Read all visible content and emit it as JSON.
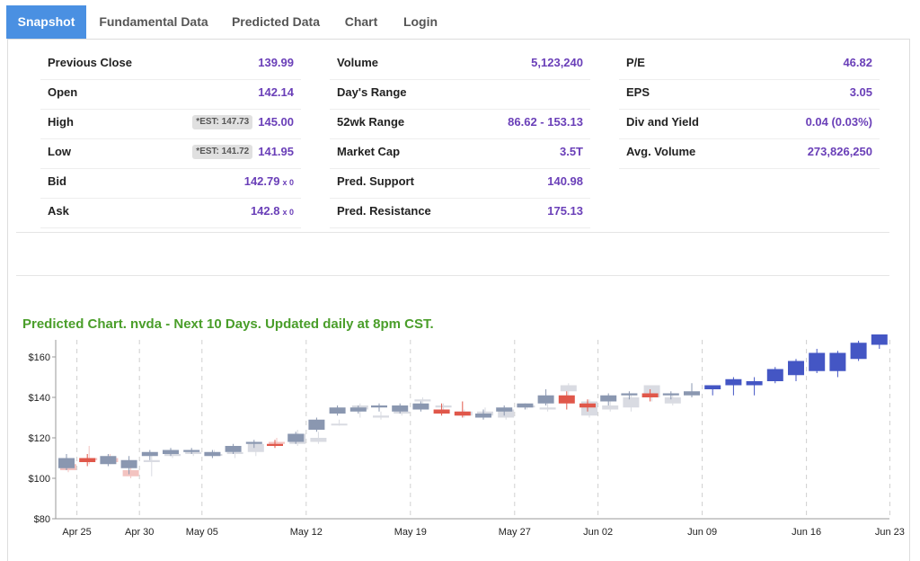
{
  "tabs": [
    {
      "label": "Snapshot",
      "active": true
    },
    {
      "label": "Fundamental Data",
      "active": false
    },
    {
      "label": "Predicted Data",
      "active": false
    },
    {
      "label": "Chart",
      "active": false
    },
    {
      "label": "Login",
      "active": false
    }
  ],
  "col1": [
    {
      "label": "Previous Close",
      "value": "139.99"
    },
    {
      "label": "Open",
      "value": "142.14"
    },
    {
      "label": "High",
      "est": "*EST: 147.73",
      "value": "145.00"
    },
    {
      "label": "Low",
      "est": "*EST: 141.72",
      "value": "141.95"
    },
    {
      "label": "Bid",
      "value": "142.79",
      "suffix": "x 0"
    },
    {
      "label": "Ask",
      "value": "142.8",
      "suffix": "x 0"
    }
  ],
  "col2": [
    {
      "label": "Volume",
      "value": "5,123,240"
    },
    {
      "label": "Day's Range",
      "value": ""
    },
    {
      "label": "52wk Range",
      "value": "86.62 - 153.13"
    },
    {
      "label": "Market Cap",
      "value": "3.5T"
    },
    {
      "label": "Pred. Support",
      "value": "140.98"
    },
    {
      "label": "Pred. Resistance",
      "value": "175.13"
    }
  ],
  "col3": [
    {
      "label": "P/E",
      "value": "46.82"
    },
    {
      "label": "EPS",
      "value": "3.05"
    },
    {
      "label": "Div and Yield",
      "value": "0.04 (0.03%)"
    },
    {
      "label": "Avg. Volume",
      "value": "273,826,250"
    }
  ],
  "chart_title": "Predicted Chart. nvda - Next 10 Days. Updated daily at 8pm CST.",
  "colors": {
    "accent_tab": "#4a90e2",
    "value_text": "#6a3fb8",
    "chart_title": "#4a9e2a",
    "hist_up_light": "#d9dbe2",
    "hist_up_dark": "#8a97b0",
    "hist_down_light": "#f3c3c0",
    "hist_down_dark": "#e0574a",
    "pred_up": "#4456c4"
  },
  "chart_data": {
    "type": "candlestick",
    "title": "Predicted Chart. nvda - Next 10 Days. Updated daily at 8pm CST.",
    "y_ticks": [
      "$80",
      "$100",
      "$120",
      "$140",
      "$160"
    ],
    "ylim": [
      80,
      180
    ],
    "x_tick_labels": [
      "Apr 25",
      "Apr 30",
      "May 05",
      "May 12",
      "May 19",
      "May 27",
      "Jun 02",
      "Jun 09",
      "Jun 16",
      "Jun 23"
    ],
    "x_tick_positions": [
      0.5,
      3.5,
      6.5,
      11.5,
      16.5,
      21.5,
      25.5,
      30.5,
      35.5,
      39.5
    ],
    "grid": "dashed vertical",
    "candles_actual": [
      {
        "o": 105,
        "c": 110,
        "h": 112,
        "l": 104
      },
      {
        "o": 110,
        "c": 108,
        "h": 112,
        "l": 106
      },
      {
        "o": 107,
        "c": 111,
        "h": 112,
        "l": 106
      },
      {
        "o": 105,
        "c": 109,
        "h": 111,
        "l": 102
      },
      {
        "o": 111,
        "c": 113,
        "h": 114,
        "l": 109
      },
      {
        "o": 112,
        "c": 114,
        "h": 115,
        "l": 111
      },
      {
        "o": 113,
        "c": 114,
        "h": 115,
        "l": 112
      },
      {
        "o": 111,
        "c": 113,
        "h": 114,
        "l": 110
      },
      {
        "o": 113,
        "c": 116,
        "h": 117,
        "l": 112
      },
      {
        "o": 117,
        "c": 118,
        "h": 119,
        "l": 115
      },
      {
        "o": 117,
        "c": 116,
        "h": 119,
        "l": 115
      },
      {
        "o": 118,
        "c": 122,
        "h": 123,
        "l": 117
      },
      {
        "o": 124,
        "c": 129,
        "h": 130,
        "l": 123
      },
      {
        "o": 132,
        "c": 135,
        "h": 136,
        "l": 131
      },
      {
        "o": 133,
        "c": 135,
        "h": 136,
        "l": 132
      },
      {
        "o": 135,
        "c": 136,
        "h": 137,
        "l": 133
      },
      {
        "o": 133,
        "c": 136,
        "h": 137,
        "l": 132
      },
      {
        "o": 134,
        "c": 137,
        "h": 138,
        "l": 133
      },
      {
        "o": 134,
        "c": 132,
        "h": 137,
        "l": 131
      },
      {
        "o": 133,
        "c": 131,
        "h": 138,
        "l": 130
      },
      {
        "o": 130,
        "c": 132,
        "h": 134,
        "l": 129
      },
      {
        "o": 133,
        "c": 135,
        "h": 136,
        "l": 131
      },
      {
        "o": 135,
        "c": 137,
        "h": 137,
        "l": 134
      },
      {
        "o": 137,
        "c": 141,
        "h": 144,
        "l": 136
      },
      {
        "o": 141,
        "c": 137,
        "h": 143,
        "l": 134
      },
      {
        "o": 137,
        "c": 135,
        "h": 139,
        "l": 133
      },
      {
        "o": 138,
        "c": 141,
        "h": 142,
        "l": 136
      },
      {
        "o": 141,
        "c": 142,
        "h": 143,
        "l": 139
      },
      {
        "o": 142,
        "c": 140,
        "h": 144,
        "l": 138
      },
      {
        "o": 141,
        "c": 142,
        "h": 143,
        "l": 139
      },
      {
        "o": 141,
        "c": 143,
        "h": 147,
        "l": 140
      }
    ],
    "candles_shadow": [
      {
        "o": 107,
        "c": 104,
        "h": 108,
        "l": 103
      },
      {
        "o": 110,
        "c": 109,
        "h": 116,
        "l": 107
      },
      {
        "o": 110,
        "c": 108,
        "h": 112,
        "l": 107
      },
      {
        "o": 104,
        "c": 101,
        "h": 106,
        "l": 100
      },
      {
        "o": 108,
        "c": 109,
        "h": 112,
        "l": 101
      },
      {
        "o": 111,
        "c": 112,
        "h": 113,
        "l": 110
      },
      {
        "o": 112,
        "c": 113,
        "h": 114,
        "l": 111
      },
      {
        "o": 112,
        "c": 112,
        "h": 114,
        "l": 111
      },
      {
        "o": 112,
        "c": 113,
        "h": 115,
        "l": 110
      },
      {
        "o": 113,
        "c": 117,
        "h": 118,
        "l": 111
      },
      {
        "o": 118,
        "c": 117,
        "h": 120,
        "l": 116
      },
      {
        "o": 117,
        "c": 122,
        "h": 124,
        "l": 116
      },
      {
        "o": 118,
        "c": 120,
        "h": 123,
        "l": 117
      },
      {
        "o": 127,
        "c": 127,
        "h": 129,
        "l": 126
      },
      {
        "o": 134,
        "c": 136,
        "h": 137,
        "l": 130
      },
      {
        "o": 130,
        "c": 131,
        "h": 133,
        "l": 129
      },
      {
        "o": 132,
        "c": 133,
        "h": 135,
        "l": 131
      },
      {
        "o": 138,
        "c": 139,
        "h": 140,
        "l": 137
      },
      {
        "o": 135,
        "c": 136,
        "h": 137,
        "l": 133
      },
      {
        "o": 131,
        "c": 133,
        "h": 134,
        "l": 130
      },
      {
        "o": 131,
        "c": 133,
        "h": 135,
        "l": 130
      },
      {
        "o": 130,
        "c": 134,
        "h": 135,
        "l": 129
      },
      {
        "o": 135,
        "c": 136,
        "h": 137,
        "l": 134
      },
      {
        "o": 134,
        "c": 135,
        "h": 137,
        "l": 133
      },
      {
        "o": 143,
        "c": 146,
        "h": 147,
        "l": 139
      },
      {
        "o": 131,
        "c": 138,
        "h": 139,
        "l": 130
      },
      {
        "o": 134,
        "c": 136,
        "h": 138,
        "l": 133
      },
      {
        "o": 135,
        "c": 140,
        "h": 141,
        "l": 133
      },
      {
        "o": 140,
        "c": 146,
        "h": 146,
        "l": 138
      },
      {
        "o": 137,
        "c": 140,
        "h": 141,
        "l": 136
      }
    ],
    "candles_predicted": [
      {
        "o": 144,
        "c": 146,
        "h": 146,
        "l": 141
      },
      {
        "o": 146,
        "c": 149,
        "h": 150,
        "l": 141
      },
      {
        "o": 146,
        "c": 148,
        "h": 150,
        "l": 141
      },
      {
        "o": 148,
        "c": 154,
        "h": 155,
        "l": 147
      },
      {
        "o": 151,
        "c": 158,
        "h": 159,
        "l": 148
      },
      {
        "o": 153,
        "c": 162,
        "h": 164,
        "l": 152
      },
      {
        "o": 153,
        "c": 162,
        "h": 163,
        "l": 150
      },
      {
        "o": 159,
        "c": 167,
        "h": 168,
        "l": 158
      },
      {
        "o": 166,
        "c": 174,
        "h": 177,
        "l": 164
      }
    ]
  }
}
